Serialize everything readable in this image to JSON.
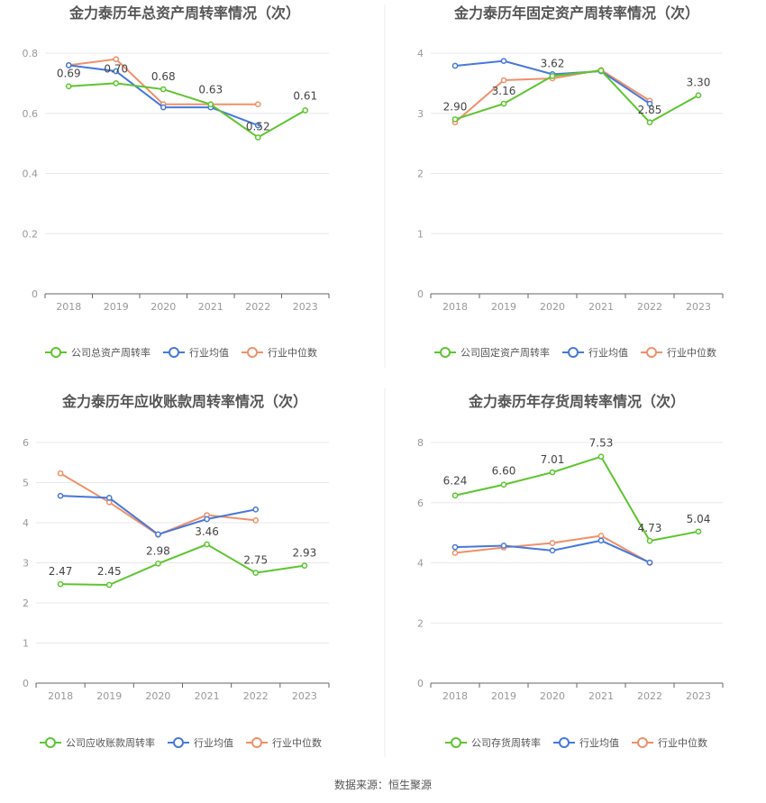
{
  "footer": "数据来源：恒生聚源",
  "colors": {
    "company": "#5dc530",
    "avg": "#4678dc",
    "median": "#f0906a",
    "grid": "#e8e8e8",
    "axis": "#999999",
    "title": "#555555"
  },
  "chart_data": [
    {
      "type": "line",
      "title": "金力泰历年总资产周转率情况（次）",
      "categories": [
        "2018",
        "2019",
        "2020",
        "2021",
        "2022",
        "2023"
      ],
      "ylim": [
        0,
        0.8
      ],
      "yticks": [
        "0",
        "0.2",
        "0.4",
        "0.6",
        "0.8"
      ],
      "series": [
        {
          "name": "公司总资产周转率",
          "role": "company",
          "values": [
            0.69,
            0.7,
            0.68,
            0.63,
            0.52,
            0.61
          ],
          "labels": [
            "0.69",
            "0.70",
            "0.68",
            "0.63",
            "0.52",
            "0.61"
          ]
        },
        {
          "name": "行业均值",
          "role": "avg",
          "values": [
            0.76,
            0.74,
            0.62,
            0.62,
            0.56,
            null
          ]
        },
        {
          "name": "行业中位数",
          "role": "median",
          "values": [
            0.76,
            0.78,
            0.63,
            0.63,
            0.63,
            null
          ]
        }
      ]
    },
    {
      "type": "line",
      "title": "金力泰历年固定资产周转率情况（次）",
      "categories": [
        "2018",
        "2019",
        "2020",
        "2021",
        "2022",
        "2023"
      ],
      "ylim": [
        0,
        4
      ],
      "yticks": [
        "0",
        "1",
        "2",
        "3",
        "4"
      ],
      "series": [
        {
          "name": "公司固定资产周转率",
          "role": "company",
          "values": [
            2.9,
            3.16,
            3.62,
            3.71,
            2.85,
            3.3
          ],
          "labels": [
            "2.90",
            "3.16",
            "3.62",
            "",
            "2.85",
            "3.30"
          ]
        },
        {
          "name": "行业均值",
          "role": "avg",
          "values": [
            3.79,
            3.87,
            3.65,
            3.7,
            3.16,
            null
          ]
        },
        {
          "name": "行业中位数",
          "role": "median",
          "values": [
            2.85,
            3.55,
            3.58,
            3.72,
            3.21,
            null
          ]
        }
      ]
    },
    {
      "type": "line",
      "title": "金力泰历年应收账款周转率情况（次）",
      "categories": [
        "2018",
        "2019",
        "2020",
        "2021",
        "2022",
        "2023"
      ],
      "ylim": [
        0,
        6
      ],
      "yticks": [
        "0",
        "1",
        "2",
        "3",
        "4",
        "5",
        "6"
      ],
      "series": [
        {
          "name": "公司应收账款周转率",
          "role": "company",
          "values": [
            2.47,
            2.45,
            2.98,
            3.46,
            2.75,
            2.93
          ],
          "labels": [
            "2.47",
            "2.45",
            "2.98",
            "3.46",
            "2.75",
            "2.93"
          ]
        },
        {
          "name": "行业均值",
          "role": "avg",
          "values": [
            4.67,
            4.62,
            3.71,
            4.09,
            4.33,
            null
          ]
        },
        {
          "name": "行业中位数",
          "role": "median",
          "values": [
            5.23,
            4.51,
            3.7,
            4.19,
            4.06,
            null
          ]
        }
      ]
    },
    {
      "type": "line",
      "title": "金力泰历年存货周转率情况（次）",
      "categories": [
        "2018",
        "2019",
        "2020",
        "2021",
        "2022",
        "2023"
      ],
      "ylim": [
        0,
        8
      ],
      "yticks": [
        "0",
        "2",
        "4",
        "6",
        "8"
      ],
      "series": [
        {
          "name": "公司存货周转率",
          "role": "company",
          "values": [
            6.24,
            6.6,
            7.01,
            7.53,
            4.73,
            5.04
          ],
          "labels": [
            "6.24",
            "6.60",
            "7.01",
            "7.53",
            "4.73",
            "5.04"
          ]
        },
        {
          "name": "行业均值",
          "role": "avg",
          "values": [
            4.52,
            4.57,
            4.41,
            4.74,
            4.01,
            null
          ]
        },
        {
          "name": "行业中位数",
          "role": "median",
          "values": [
            4.33,
            4.51,
            4.66,
            4.9,
            4.0,
            null
          ]
        }
      ]
    }
  ]
}
